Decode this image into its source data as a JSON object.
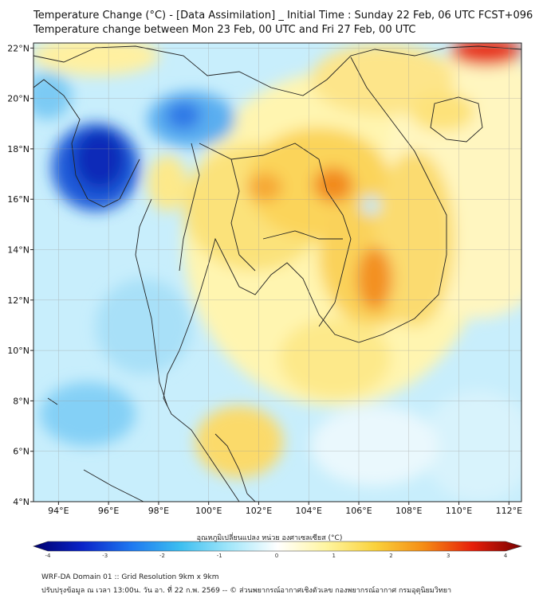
{
  "title": {
    "line1": "Temperature Change (°C) - [Data Assimilation] _ Initial Time : Sunday 22 Feb, 06 UTC FCST+096",
    "line2": "Temperature change between Mon 23 Feb, 00 UTC and Fri 27 Feb, 00 UTC"
  },
  "map": {
    "lon_range": [
      93,
      112.5
    ],
    "lat_range": [
      4,
      22.2
    ],
    "lon_ticks": [
      {
        "value": 94,
        "label": "94°E"
      },
      {
        "value": 96,
        "label": "96°E"
      },
      {
        "value": 98,
        "label": "98°E"
      },
      {
        "value": 100,
        "label": "100°E"
      },
      {
        "value": 102,
        "label": "102°E"
      },
      {
        "value": 104,
        "label": "104°E"
      },
      {
        "value": 106,
        "label": "106°E"
      },
      {
        "value": 108,
        "label": "108°E"
      },
      {
        "value": 110,
        "label": "110°E"
      },
      {
        "value": 112,
        "label": "112°E"
      }
    ],
    "lat_ticks": [
      {
        "value": 22,
        "label": "22°N"
      },
      {
        "value": 20,
        "label": "20°N"
      },
      {
        "value": 18,
        "label": "18°N"
      },
      {
        "value": 16,
        "label": "16°N"
      },
      {
        "value": 14,
        "label": "14°N"
      },
      {
        "value": 12,
        "label": "12°N"
      },
      {
        "value": 10,
        "label": "10°N"
      },
      {
        "value": 8,
        "label": "8°N"
      },
      {
        "value": 6,
        "label": "6°N"
      },
      {
        "value": 4,
        "label": "4°N"
      }
    ]
  },
  "colorbar": {
    "title": "อุณหภูมิเปลี่ยนแปลง หน่วย องศาเซลเซียส (°C)",
    "min": -4,
    "max": 4,
    "ticks": [
      {
        "value": -4,
        "label": "-4"
      },
      {
        "value": -3,
        "label": "-3"
      },
      {
        "value": -2,
        "label": "-2"
      },
      {
        "value": -1,
        "label": "-1"
      },
      {
        "value": 0,
        "label": "0"
      },
      {
        "value": 1,
        "label": "1"
      },
      {
        "value": 2,
        "label": "2"
      },
      {
        "value": 3,
        "label": "3"
      },
      {
        "value": 4,
        "label": "4"
      }
    ],
    "stops": [
      {
        "value": -4,
        "color": "#00006e"
      },
      {
        "value": -3.2,
        "color": "#0a23c8"
      },
      {
        "value": -2.4,
        "color": "#1e78f0"
      },
      {
        "value": -1.6,
        "color": "#3cbef0"
      },
      {
        "value": -0.8,
        "color": "#a0e6fa"
      },
      {
        "value": 0,
        "color": "#ffffff"
      },
      {
        "value": 0.8,
        "color": "#fff5a0"
      },
      {
        "value": 1.6,
        "color": "#fad23c"
      },
      {
        "value": 2.4,
        "color": "#f58c14"
      },
      {
        "value": 3.2,
        "color": "#e61e0a"
      },
      {
        "value": 4,
        "color": "#780000"
      }
    ]
  },
  "footer": {
    "line1": "WRF-DA Domain 01 :: Grid Resolution 9km x 9km",
    "line2": "ปรับปรุงข้อมูล ณ เวลา 13:00น. วัน อา. ที่ 22 ก.พ. 2569 -- © ส่วนพยากรณ์อากาศเชิงตัวเลข กองพยากรณ์อากาศ กรมอุตุนิยมวิทยา"
  }
}
